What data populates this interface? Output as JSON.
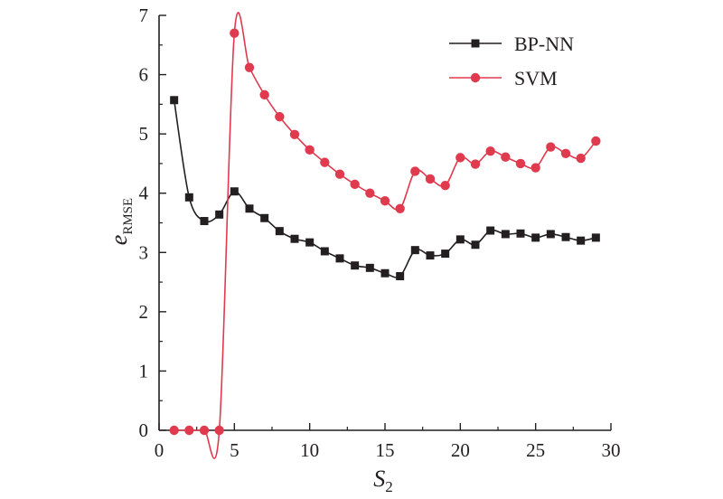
{
  "chart_data": {
    "type": "line",
    "title": "",
    "xlabel": {
      "main": "S",
      "sub": "2"
    },
    "ylabel": {
      "main": "e",
      "sub": "RMSE"
    },
    "xlim": [
      0,
      30
    ],
    "ylim": [
      0,
      7
    ],
    "xticks": [
      0,
      5,
      10,
      15,
      20,
      25,
      30
    ],
    "yticks": [
      0,
      1,
      2,
      3,
      4,
      5,
      6,
      7
    ],
    "grid": false,
    "legend_position": "top-right",
    "x": [
      1,
      2,
      3,
      4,
      5,
      6,
      7,
      8,
      9,
      10,
      11,
      12,
      13,
      14,
      15,
      16,
      17,
      18,
      19,
      20,
      21,
      22,
      23,
      24,
      25,
      26,
      27,
      28,
      29
    ],
    "series": [
      {
        "name": "BP-NN",
        "color": "#231f20",
        "marker": "square",
        "values": [
          5.57,
          3.93,
          3.53,
          3.64,
          4.03,
          3.74,
          3.58,
          3.36,
          3.23,
          3.17,
          3.02,
          2.9,
          2.78,
          2.74,
          2.65,
          2.6,
          3.04,
          2.95,
          2.98,
          3.22,
          3.13,
          3.37,
          3.31,
          3.32,
          3.25,
          3.31,
          3.26,
          3.2,
          3.25
        ]
      },
      {
        "name": "SVM",
        "color": "#e03a4e",
        "marker": "circle",
        "values": [
          0,
          0,
          0,
          0,
          6.7,
          6.12,
          5.66,
          5.29,
          4.99,
          4.73,
          4.52,
          4.32,
          4.15,
          4.0,
          3.87,
          3.74,
          4.37,
          4.24,
          4.13,
          4.6,
          4.49,
          4.71,
          4.61,
          4.5,
          4.43,
          4.78,
          4.67,
          4.59,
          4.88
        ]
      }
    ]
  }
}
